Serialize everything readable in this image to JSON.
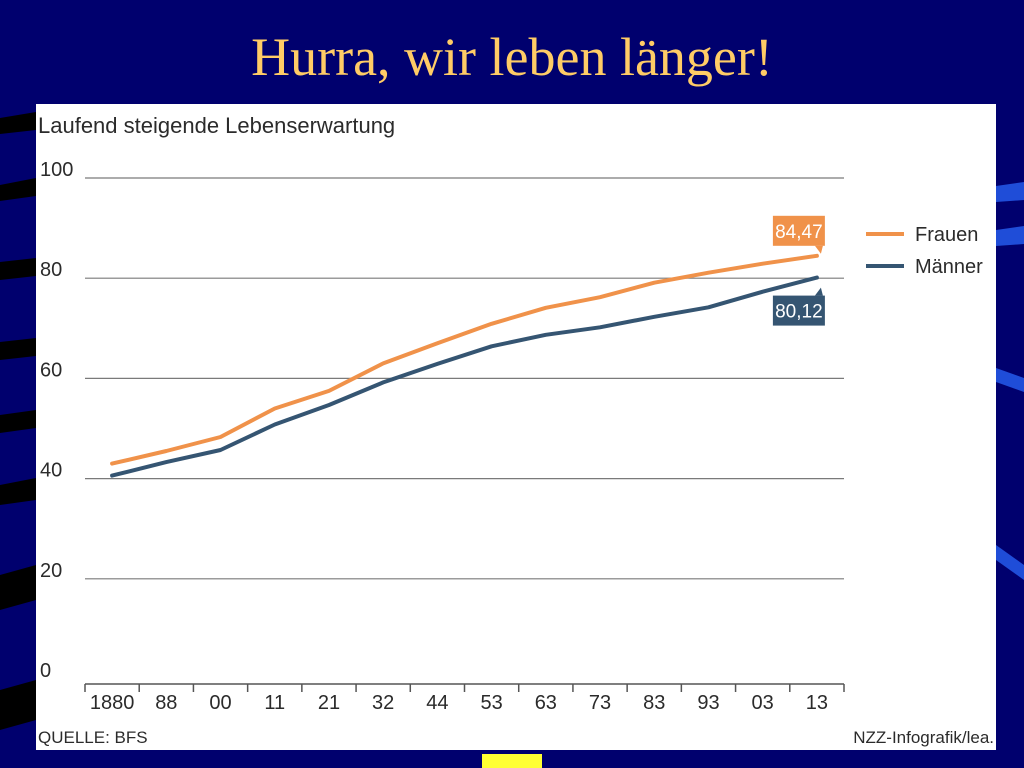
{
  "slide": {
    "title": "Hurra, wir leben länger!"
  },
  "colors": {
    "background": "#00006e",
    "title": "#ffcc66",
    "frauen": "#f0924a",
    "maenner": "#355572"
  },
  "chart_data": {
    "type": "line",
    "title": "Laufend steigende Lebenserwartung",
    "x": [
      "1880",
      "88",
      "00",
      "11",
      "21",
      "32",
      "44",
      "53",
      "63",
      "73",
      "83",
      "93",
      "03",
      "13"
    ],
    "series": [
      {
        "name": "Frauen",
        "values": [
          43.0,
          45.5,
          48.3,
          54.0,
          57.5,
          63.0,
          67.0,
          70.9,
          74.1,
          76.2,
          79.1,
          81.1,
          82.9,
          84.47
        ],
        "end_label": "84,47"
      },
      {
        "name": "Männer",
        "values": [
          40.6,
          43.3,
          45.7,
          50.8,
          54.7,
          59.2,
          62.9,
          66.4,
          68.7,
          70.2,
          72.3,
          74.2,
          77.3,
          80.12
        ],
        "end_label": "80,12"
      }
    ],
    "yticks": [
      "0",
      "20",
      "40",
      "60",
      "80",
      "100"
    ],
    "ylim": [
      0,
      100
    ],
    "grid": true,
    "legend_position": "right",
    "source": "QUELLE: BFS",
    "credit": "NZZ-Infografik/lea."
  }
}
